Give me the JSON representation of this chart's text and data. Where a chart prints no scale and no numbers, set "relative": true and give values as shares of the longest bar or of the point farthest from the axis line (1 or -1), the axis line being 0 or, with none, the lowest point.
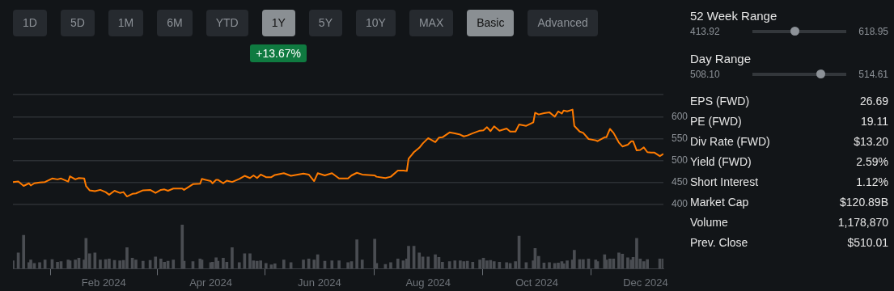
{
  "chart_data": [
    {
      "type": "other",
      "annotations": [
        "1D",
        "5D",
        "1M",
        "6M",
        "YTD",
        "1Y",
        "5Y",
        "10Y",
        "MAX",
        "Basic",
        "Advanced",
        "+13.67%"
      ]
    },
    {
      "type": "line",
      "x": [
        "2023-12-12",
        "2023-12-15",
        "2023-12-18",
        "2023-12-21",
        "2023-12-22",
        "2023-12-24",
        "2023-12-27",
        "2023-12-30",
        "2024-01-03",
        "2024-01-06",
        "2024-01-08",
        "2024-01-12",
        "2024-01-13",
        "2024-01-16",
        "2024-01-18",
        "2024-01-21",
        "2024-01-22",
        "2024-01-24",
        "2024-01-27",
        "2024-01-30",
        "2024-02-02",
        "2024-02-04",
        "2024-02-07",
        "2024-02-10",
        "2024-02-12",
        "2024-02-14",
        "2024-02-17",
        "2024-02-19",
        "2024-02-23",
        "2024-02-27",
        "2024-03-01",
        "2024-03-04",
        "2024-03-06",
        "2024-03-08",
        "2024-03-11",
        "2024-03-16",
        "2024-03-17",
        "2024-03-22",
        "2024-03-26",
        "2024-03-27",
        "2024-04-01",
        "2024-04-02",
        "2024-04-04",
        "2024-04-05",
        "2024-04-08",
        "2024-04-10",
        "2024-04-13",
        "2024-04-17",
        "2024-04-20",
        "2024-04-23",
        "2024-04-25",
        "2024-04-27",
        "2024-04-29",
        "2024-05-02",
        "2024-05-05",
        "2024-05-07",
        "2024-05-12",
        "2024-05-16",
        "2024-05-23",
        "2024-05-26",
        "2024-05-29",
        "2024-05-31",
        "2024-06-04",
        "2024-06-08",
        "2024-06-12",
        "2024-06-17",
        "2024-06-19",
        "2024-06-22",
        "2024-06-25",
        "2024-07-02",
        "2024-07-03",
        "2024-07-08",
        "2024-07-11",
        "2024-07-15",
        "2024-07-18",
        "2024-07-20",
        "2024-07-21",
        "2024-07-24",
        "2024-07-27",
        "2024-07-29",
        "2024-08-01",
        "2024-08-05",
        "2024-08-07",
        "2024-08-09",
        "2024-08-13",
        "2024-08-16",
        "2024-08-19",
        "2024-08-21",
        "2024-08-23",
        "2024-08-26",
        "2024-08-30",
        "2024-09-01",
        "2024-09-03",
        "2024-09-05",
        "2024-09-07",
        "2024-09-10",
        "2024-09-14",
        "2024-09-16",
        "2024-09-19",
        "2024-09-21",
        "2024-09-25",
        "2024-09-29",
        "2024-09-30",
        "2024-10-02",
        "2024-10-05",
        "2024-10-08",
        "2024-10-11",
        "2024-10-13",
        "2024-10-15",
        "2024-10-16",
        "2024-10-18",
        "2024-10-21",
        "2024-10-22",
        "2024-10-25",
        "2024-10-27",
        "2024-10-30",
        "2024-11-03",
        "2024-11-04",
        "2024-11-08",
        "2024-11-09",
        "2024-11-11",
        "2024-11-13",
        "2024-11-16",
        "2024-11-18",
        "2024-11-21",
        "2024-11-23",
        "2024-11-24",
        "2024-11-26",
        "2024-11-28",
        "2024-11-30",
        "2024-12-02",
        "2024-12-04",
        "2024-12-06",
        "2024-12-09",
        "2024-12-11"
      ],
      "series": [
        {
          "color": "#ff7b00",
          "values": [
            451,
            452,
            442,
            448,
            443,
            448,
            450,
            451,
            459,
            457,
            459,
            452,
            464,
            457,
            460,
            459,
            442,
            432,
            430,
            433,
            428,
            422,
            431,
            426,
            428,
            418,
            424,
            425,
            432,
            433,
            426,
            433,
            434,
            431,
            436,
            436,
            433,
            446,
            447,
            458,
            453,
            448,
            456,
            456,
            448,
            454,
            451,
            458,
            465,
            460,
            466,
            460,
            468,
            462,
            462,
            467,
            471,
            465,
            470,
            468,
            453,
            471,
            466,
            471,
            459,
            459,
            466,
            472,
            468,
            466,
            463,
            460,
            463,
            477,
            477,
            476,
            504,
            519,
            529,
            539,
            551,
            542,
            552,
            553,
            564,
            562,
            559,
            555,
            557,
            562,
            568,
            569,
            576,
            567,
            578,
            568,
            573,
            566,
            566,
            582,
            579,
            587,
            609,
            605,
            608,
            610,
            600,
            612,
            607,
            614,
            612,
            616,
            579,
            566,
            563,
            549,
            546,
            544,
            553,
            553,
            572,
            563,
            541,
            532,
            536,
            544,
            544,
            523,
            524,
            530,
            519,
            518,
            518,
            510,
            515
          ]
        }
      ],
      "xlim": [
        "2023-12-12",
        "2024-12-11"
      ],
      "ylim": [
        400,
        650
      ],
      "yticks": [
        400,
        450,
        500,
        550,
        600,
        {
          "value": 650,
          "label": null
        }
      ],
      "grid": "y",
      "tick_labels": "y",
      "marker": "none"
    },
    {
      "type": "bar",
      "relative": true,
      "x": [
        "2023-12-12",
        "2023-12-15",
        "2023-12-18",
        "2023-12-21",
        "2023-12-22",
        "2023-12-24",
        "2023-12-27",
        "2023-12-30",
        "2024-01-03",
        "2024-01-06",
        "2024-01-08",
        "2024-01-12",
        "2024-01-13",
        "2024-01-16",
        "2024-01-18",
        "2024-01-21",
        "2024-01-22",
        "2024-01-24",
        "2024-01-27",
        "2024-01-30",
        "2024-02-02",
        "2024-02-04",
        "2024-02-07",
        "2024-02-10",
        "2024-02-12",
        "2024-02-14",
        "2024-02-17",
        "2024-02-19",
        "2024-02-23",
        "2024-02-27",
        "2024-03-01",
        "2024-03-04",
        "2024-03-06",
        "2024-03-08",
        "2024-03-11",
        "2024-03-16",
        "2024-03-17",
        "2024-03-22",
        "2024-03-26",
        "2024-03-27",
        "2024-04-01",
        "2024-04-02",
        "2024-04-04",
        "2024-04-05",
        "2024-04-08",
        "2024-04-10",
        "2024-04-13",
        "2024-04-17",
        "2024-04-20",
        "2024-04-23",
        "2024-04-25",
        "2024-04-27",
        "2024-04-29",
        "2024-05-02",
        "2024-05-05",
        "2024-05-07",
        "2024-05-12",
        "2024-05-16",
        "2024-05-23",
        "2024-05-26",
        "2024-05-29",
        "2024-05-31",
        "2024-06-04",
        "2024-06-08",
        "2024-06-12",
        "2024-06-17",
        "2024-06-19",
        "2024-06-22",
        "2024-06-25",
        "2024-07-02",
        "2024-07-03",
        "2024-07-08",
        "2024-07-11",
        "2024-07-15",
        "2024-07-18",
        "2024-07-20",
        "2024-07-21",
        "2024-07-24",
        "2024-07-27",
        "2024-07-29",
        "2024-08-01",
        "2024-08-05",
        "2024-08-07",
        "2024-08-09",
        "2024-08-13",
        "2024-08-16",
        "2024-08-19",
        "2024-08-21",
        "2024-08-23",
        "2024-08-26",
        "2024-08-30",
        "2024-09-01",
        "2024-09-03",
        "2024-09-05",
        "2024-09-07",
        "2024-09-10",
        "2024-09-14",
        "2024-09-16",
        "2024-09-19",
        "2024-09-21",
        "2024-09-25",
        "2024-09-29",
        "2024-09-30",
        "2024-10-02",
        "2024-10-05",
        "2024-10-08",
        "2024-10-11",
        "2024-10-13",
        "2024-10-15",
        "2024-10-16",
        "2024-10-18",
        "2024-10-21",
        "2024-10-22",
        "2024-10-25",
        "2024-10-27",
        "2024-10-30",
        "2024-11-03",
        "2024-11-04",
        "2024-11-08",
        "2024-11-09",
        "2024-11-11",
        "2024-11-13",
        "2024-11-16",
        "2024-11-18",
        "2024-11-21",
        "2024-11-23",
        "2024-11-24",
        "2024-11-26",
        "2024-11-28",
        "2024-11-30",
        "2024-12-02",
        "2024-12-04",
        "2024-12-06",
        "2024-12-09",
        "2024-12-11"
      ],
      "series": [
        {
          "color": "#4a4d52",
          "values": [
            0.18,
            0.36,
            0.76,
            0.14,
            0.2,
            0.12,
            0.14,
            0.2,
            0.21,
            0.15,
            0.16,
            0.2,
            0.18,
            0.2,
            0.24,
            0.2,
            0.69,
            0.34,
            0.36,
            0.2,
            0.21,
            0.22,
            0.19,
            0.18,
            0.19,
            0.48,
            0.24,
            0.2,
            0.17,
            0.19,
            0.27,
            0.22,
            0.15,
            0.17,
            0.2,
            1.0,
            0.17,
            0.16,
            0.22,
            0.2,
            0.14,
            0.15,
            0.25,
            0.17,
            0.24,
            0.15,
            0.48,
            0.14,
            0.34,
            0.34,
            0.18,
            0.17,
            0.18,
            0.12,
            0.09,
            0.11,
            0.2,
            0.14,
            0.2,
            0.22,
            0.2,
            0.32,
            0.17,
            0.18,
            0.18,
            0.14,
            0.16,
            0.66,
            0.2,
            0.67,
            0.12,
            0.1,
            0.14,
            0.22,
            0.18,
            0.22,
            0.51,
            0.51,
            0.36,
            0.27,
            0.27,
            0.32,
            0.26,
            0.15,
            0.16,
            0.18,
            0.18,
            0.16,
            0.17,
            0.15,
            0.2,
            0.24,
            0.18,
            0.19,
            0.16,
            0.15,
            0.14,
            0.12,
            0.16,
            0.74,
            0.14,
            0.18,
            0.46,
            0.28,
            0.13,
            0.14,
            0.12,
            0.13,
            0.16,
            0.11,
            0.18,
            0.2,
            0.42,
            0.21,
            0.21,
            0.22,
            0.2,
            0.16,
            0.32,
            0.2,
            0.22,
            0.22,
            0.36,
            0.33,
            0.25,
            0.2,
            0.26,
            0.69,
            0.22,
            0.16,
            0.21,
            null,
            null,
            0.22,
            0.22
          ]
        }
      ],
      "xlim": [
        "2023-12-12",
        "2024-12-11"
      ],
      "xticks": [
        {
          "value": "2024-02-01",
          "label": "Feb 2024"
        },
        {
          "value": "2024-04-01",
          "label": "Apr 2024"
        },
        {
          "value": "2024-06-01",
          "label": "Jun 2024"
        },
        {
          "value": "2024-08-01",
          "label": "Aug 2024"
        },
        {
          "value": "2024-10-01",
          "label": "Oct 2024"
        },
        {
          "value": "2024-12-01",
          "label": "Dec 2024"
        }
      ],
      "tick_labels": "x"
    },
    {
      "type": "other",
      "annotations": [
        "52 Week Range",
        "413.92",
        "618.95",
        "Day Range",
        "508.10",
        "514.61",
        "EPS (FWD)",
        "26.69",
        "PE (FWD)",
        "19.11",
        "Div Rate (FWD)",
        "$13.20",
        "Yield (FWD)",
        "2.59%",
        "Short Interest",
        "1.12%",
        "Market Cap",
        "$120.89B",
        "Volume",
        "1,178,870",
        "Prev. Close",
        "$510.01"
      ]
    }
  ]
}
